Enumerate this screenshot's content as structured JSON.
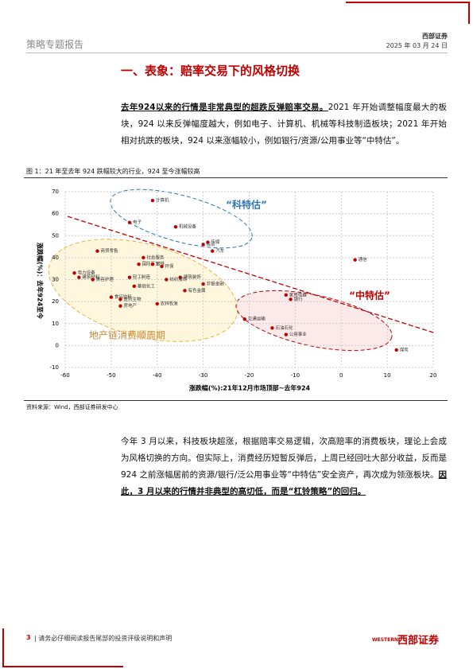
{
  "header": {
    "report_type": "策略专题报告",
    "company": "西部证券",
    "date": "2025 年 03 月 24 日"
  },
  "section_title": "一、表象：赔率交易下的风格切换",
  "paragraph1": {
    "lead": "去年924以来的行情是非常典型的超跌反弹赔率交易。",
    "rest": "2021 年开始调整幅度最大的板块，924 以来反弹幅度越大，例如电子、计算机、机械等科技制造板块；2021 年开始相对抗跌的板块，924 以来涨幅较小，例如银行/资源/公用事业等“中特估”。"
  },
  "figure": {
    "caption": "图 1：21 年至去年 924 跌幅较大的行业，924 至今涨幅较高",
    "source": "资料来源：Wind，西部证券研发中心"
  },
  "chart_data": {
    "type": "scatter",
    "x_label": "涨跌幅(%):21年12月市场顶部~去年924",
    "y_label": "涨跌幅(%)：去年924至今",
    "color": "#c00000",
    "grid": true,
    "xlim": [
      -60,
      20
    ],
    "xticks": [
      -60,
      -50,
      -40,
      -30,
      -20,
      -10,
      0,
      10,
      20
    ],
    "ylim": [
      -10,
      70
    ],
    "yticks": [
      -10,
      0,
      10,
      20,
      30,
      40,
      50,
      60,
      70
    ],
    "annotations": [
      "“科特估”",
      "地产链消费顺周期",
      "“中特估”"
    ],
    "points": [
      {
        "label": "计算机",
        "x": -41,
        "y": 66
      },
      {
        "label": "电子",
        "x": -46,
        "y": 56
      },
      {
        "label": "机械设备",
        "x": -36,
        "y": 54
      },
      {
        "label": "传媒",
        "x": -29,
        "y": 47
      },
      {
        "label": "综合",
        "x": -30,
        "y": 46
      },
      {
        "label": "汽车",
        "x": -28,
        "y": 43
      },
      {
        "label": "商贸零售",
        "x": -53,
        "y": 43
      },
      {
        "label": "社会服务",
        "x": -43,
        "y": 40
      },
      {
        "label": "国防军工",
        "x": -44,
        "y": 37
      },
      {
        "label": "钢铁",
        "x": -41,
        "y": 37
      },
      {
        "label": "环保",
        "x": -39,
        "y": 36
      },
      {
        "label": "电力设备",
        "x": -58,
        "y": 33
      },
      {
        "label": "建筑材料",
        "x": -57,
        "y": 31
      },
      {
        "label": "美容护理",
        "x": -54,
        "y": 30
      },
      {
        "label": "轻工制造",
        "x": -46,
        "y": 31
      },
      {
        "label": "建筑装饰",
        "x": -35,
        "y": 31
      },
      {
        "label": "纺织服饰",
        "x": -38,
        "y": 30
      },
      {
        "label": "非银金融",
        "x": -30,
        "y": 28
      },
      {
        "label": "基础化工",
        "x": -45,
        "y": 27
      },
      {
        "label": "有色金属",
        "x": -34,
        "y": 25
      },
      {
        "label": "食品饮料",
        "x": -50,
        "y": 22
      },
      {
        "label": "医药生物",
        "x": -48,
        "y": 21
      },
      {
        "label": "房地产",
        "x": -48,
        "y": 18
      },
      {
        "label": "农林牧渔",
        "x": -40,
        "y": 19
      },
      {
        "label": "通信",
        "x": 3,
        "y": 39
      },
      {
        "label": "家用电器",
        "x": -12,
        "y": 23
      },
      {
        "label": "银行",
        "x": -11,
        "y": 21
      },
      {
        "label": "交通运输",
        "x": -21,
        "y": 12
      },
      {
        "label": "石油石化",
        "x": -15,
        "y": 8
      },
      {
        "label": "公用事业",
        "x": -12,
        "y": 5
      },
      {
        "label": "煤炭",
        "x": 12,
        "y": -2
      }
    ]
  },
  "paragraph2": {
    "body": "今年 3 月以来，科技板块超涨，根据赔率交易逻辑，次高赔率的消费板块，理论上会成为风格切换的方向。但实际上，消费经历短暂反弹后，上周已经回吐大部分收益，反而是 924 之前涨幅居前的资源/银行/泛公用事业等“中特估”安全资产，再次成为领涨板块。",
    "conclusion": "因此，3 月以来的行情并非典型的高切低，而是“杠铃策略”的回归。"
  },
  "footer": {
    "page": "3",
    "disclaimer": "请务必仔细阅读报告尾部的投资评级说明和声明",
    "logo_en": "WESTERN",
    "logo_cn": "西部证券"
  }
}
